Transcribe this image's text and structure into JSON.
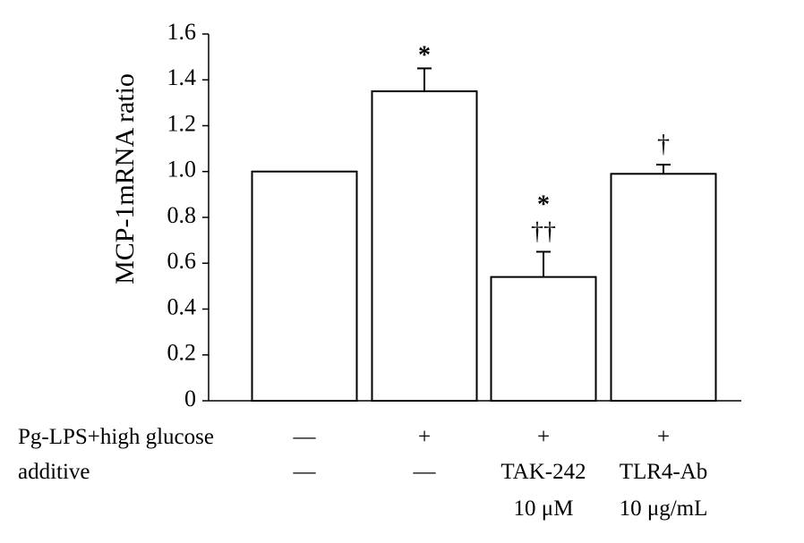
{
  "chart_data": {
    "type": "bar",
    "title": "",
    "xlabel": "",
    "ylabel": "MCP-1mRNA ratio",
    "ylim": [
      0,
      1.6
    ],
    "yticks": [
      0,
      0.2,
      0.4,
      0.6,
      0.8,
      1.0,
      1.2,
      1.4,
      1.6
    ],
    "ytick_labels": [
      "0",
      "0.2",
      "0.4",
      "0.6",
      "0.8",
      "1.0",
      "1.2",
      "1.4",
      "1.6"
    ],
    "grid": false,
    "legend": "none",
    "bar_fill": "#ffffff",
    "bar_stroke": "#000000",
    "bars": [
      {
        "value": 1.0,
        "error": 0.0,
        "sig": []
      },
      {
        "value": 1.35,
        "error": 0.1,
        "sig": [
          "*"
        ]
      },
      {
        "value": 0.54,
        "error": 0.11,
        "sig": [
          "*",
          "††"
        ]
      },
      {
        "value": 0.99,
        "error": 0.04,
        "sig": [
          "†"
        ]
      }
    ],
    "condition_rows": [
      {
        "label": "Pg-LPS+high glucose",
        "cells": [
          "—",
          "+",
          "+",
          "+"
        ]
      },
      {
        "label": "additive",
        "cells": [
          "—",
          "—",
          "TAK-242",
          "TLR4-Ab"
        ]
      },
      {
        "label": "",
        "cells": [
          "",
          "",
          "10 μM",
          "10 μg/mL"
        ]
      }
    ]
  }
}
